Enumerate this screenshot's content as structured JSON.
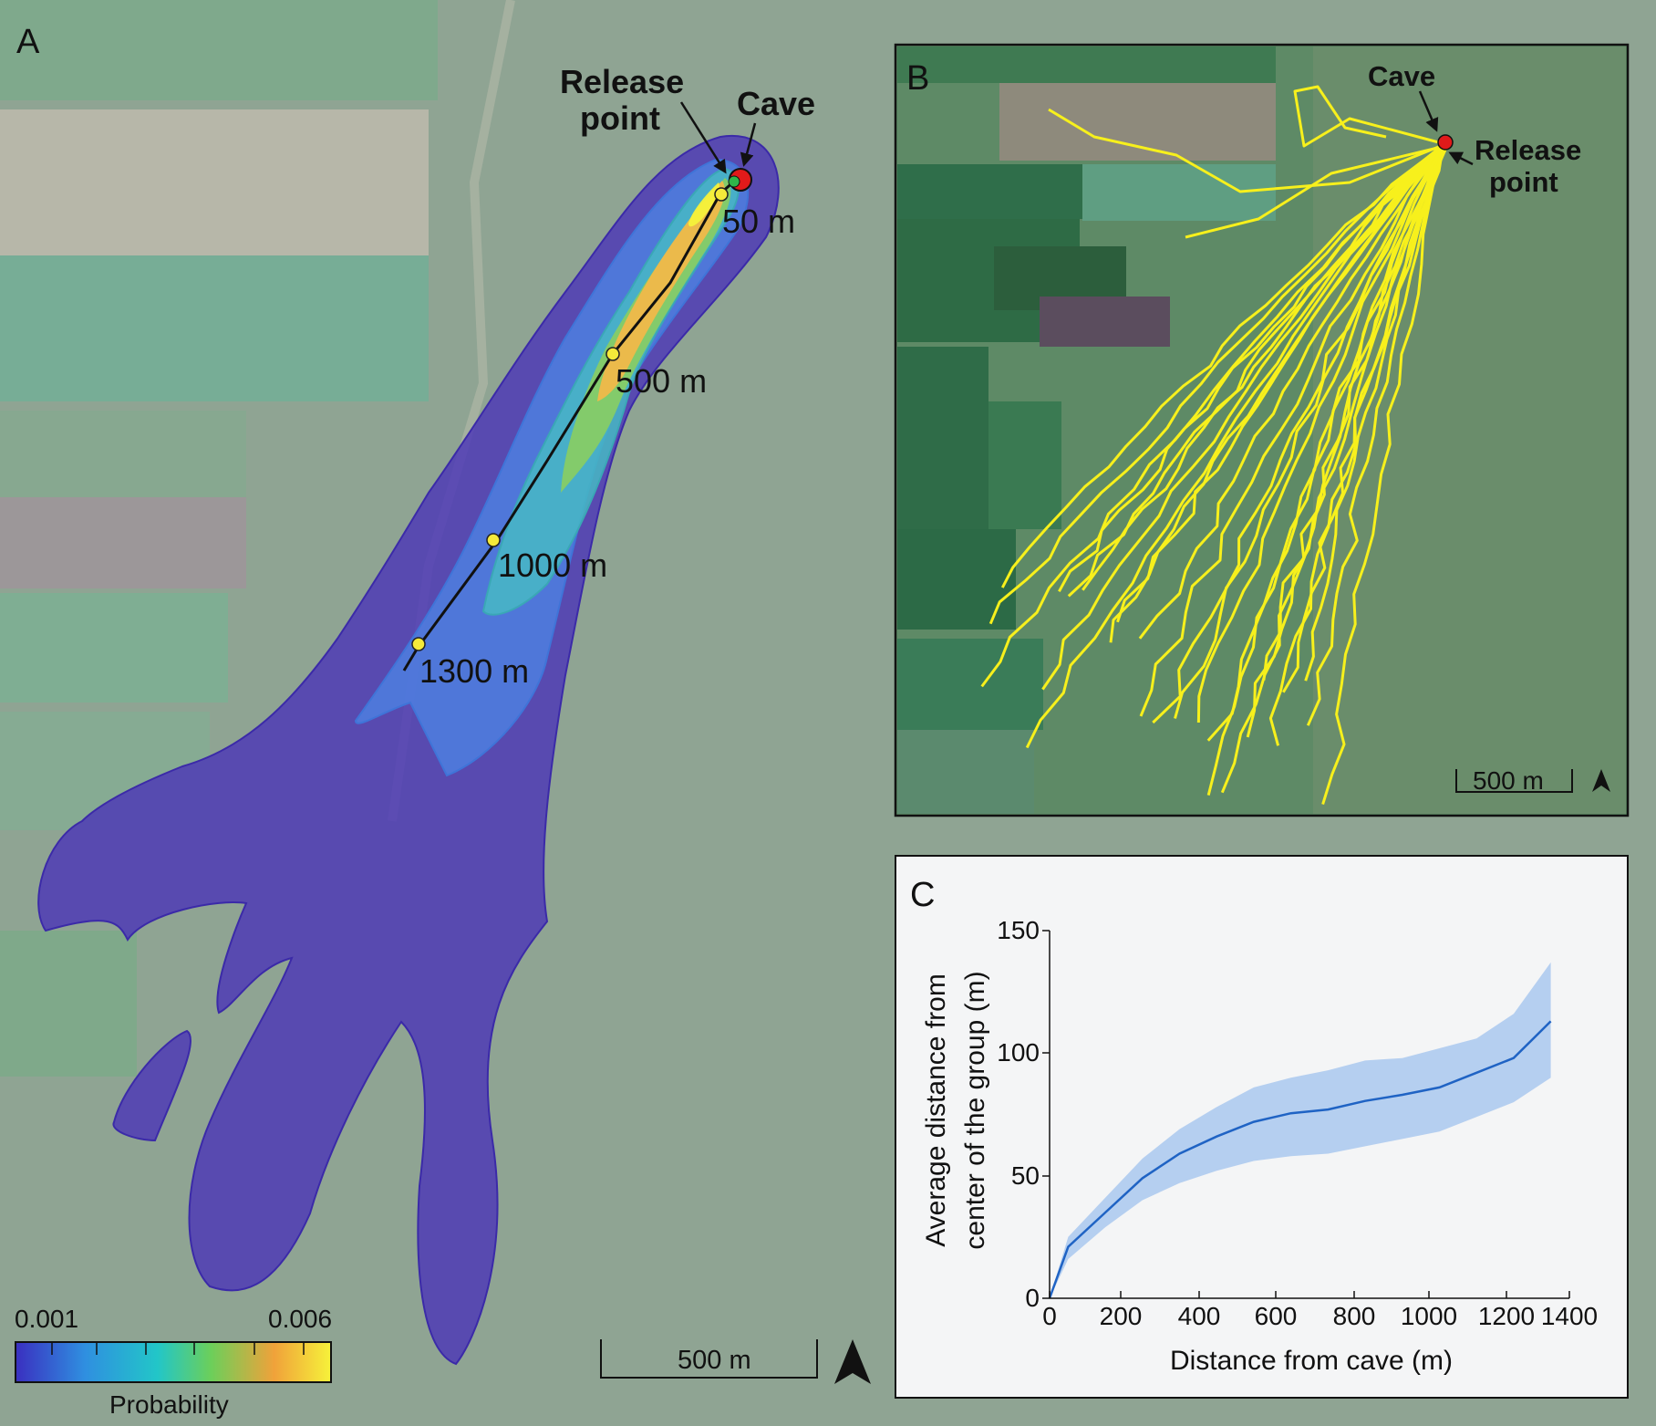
{
  "panels": {
    "a": {
      "letter": "A",
      "release_label_1": "Release",
      "release_label_2": "point",
      "cave_label": "Cave",
      "distance_markers": [
        "50 m",
        "500 m",
        "1000 m",
        "1300 m"
      ],
      "scale_label": "500 m",
      "colorbar": {
        "min_label": "0.001",
        "max_label": "0.006",
        "title": "Probability",
        "colors": [
          "#3a2fc0",
          "#2f8fe0",
          "#22c6c8",
          "#6ccf5a",
          "#f0a23a",
          "#f6f23a"
        ]
      }
    },
    "b": {
      "letter": "B",
      "cave_label": "Cave",
      "release_label_1": "Release",
      "release_label_2": "point",
      "scale_label": "500 m",
      "track_color": "#f7f01c"
    },
    "c": {
      "letter": "C"
    }
  },
  "chart_data": {
    "type": "line",
    "xlabel": "Distance from cave (m)",
    "ylabel_line1": "Average distance from",
    "ylabel_line2": "center of the group (m)",
    "xlim": [
      0,
      1400
    ],
    "ylim": [
      0,
      150
    ],
    "xticks": [
      "0",
      "200",
      "400",
      "600",
      "800",
      "1000",
      "1200",
      "1400"
    ],
    "yticks": [
      "0",
      "50",
      "100",
      "150"
    ],
    "line_color": "#1f63c4",
    "band_color": "#a9c8ef",
    "series": [
      {
        "x": [
          0,
          50,
          150,
          250,
          350,
          450,
          550,
          650,
          750,
          850,
          950,
          1050,
          1150,
          1250,
          1350
        ],
        "y": [
          0,
          21,
          35,
          49,
          59,
          66,
          72,
          75.5,
          77,
          80.5,
          83,
          86,
          92,
          98,
          113
        ],
        "y_low": [
          0,
          16,
          29,
          40,
          47,
          52,
          56,
          58,
          59,
          62,
          65,
          68,
          74,
          80,
          90
        ],
        "y_high": [
          0,
          25,
          41,
          57,
          69,
          78,
          86,
          90,
          93,
          97,
          98,
          102,
          106,
          116,
          137
        ]
      }
    ]
  }
}
